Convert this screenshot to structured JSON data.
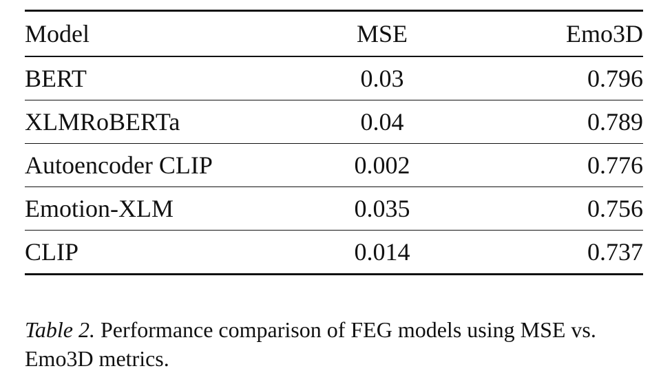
{
  "table": {
    "headers": {
      "model": "Model",
      "mse": "MSE",
      "emo3d": "Emo3D"
    },
    "rows": [
      {
        "model": "BERT",
        "mse": "0.03",
        "emo3d": "0.796"
      },
      {
        "model": "XLMRoBERTa",
        "mse": "0.04",
        "emo3d": "0.789"
      },
      {
        "model": "Autoencoder CLIP",
        "mse": "0.002",
        "emo3d": "0.776"
      },
      {
        "model": "Emotion-XLM",
        "mse": "0.035",
        "emo3d": "0.756"
      },
      {
        "model": "CLIP",
        "mse": "0.014",
        "emo3d": "0.737"
      }
    ]
  },
  "caption": {
    "label": "Table 2.",
    "text": " Performance comparison of FEG models using MSE vs. Emo3D metrics."
  }
}
